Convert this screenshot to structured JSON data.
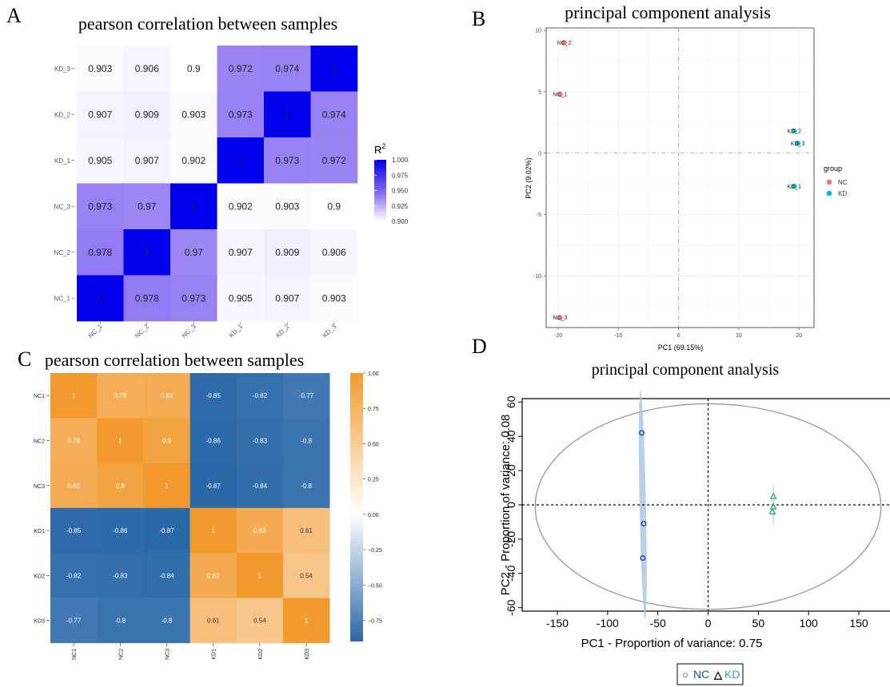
{
  "panels": {
    "A": {
      "letter": "A",
      "chart_data": {
        "type": "heatmap",
        "title": "pearson correlation between samples",
        "x_labels": [
          "NC_1",
          "NC_2",
          "NC_3",
          "KD_1",
          "KD_2",
          "KD_3"
        ],
        "y_labels_top_to_bottom": [
          "KD_3",
          "KD_2",
          "KD_1",
          "NC_3",
          "NC_2",
          "NC_1"
        ],
        "values": [
          [
            "0.903",
            "0.906",
            "0.9",
            "0.972",
            "0.974",
            "1"
          ],
          [
            "0.907",
            "0.909",
            "0.903",
            "0.973",
            "1",
            "0.974"
          ],
          [
            "0.905",
            "0.907",
            "0.902",
            "1",
            "0.973",
            "0.972"
          ],
          [
            "0.973",
            "0.97",
            "1",
            "0.902",
            "0.903",
            "0.9"
          ],
          [
            "0.978",
            "1",
            "0.97",
            "0.907",
            "0.909",
            "0.906"
          ],
          [
            "1",
            "0.978",
            "0.973",
            "0.905",
            "0.907",
            "0.903"
          ]
        ],
        "legend_title": "R",
        "legend_superscript": "2",
        "legend_ticks": [
          "1.000",
          "0.975",
          "0.950",
          "0.925",
          "0.900"
        ],
        "range": [
          0.9,
          1.0
        ],
        "colors": {
          "low": "#ffffff",
          "high": "#0000ee",
          "panel_bg": "#ebebeb"
        }
      }
    },
    "B": {
      "letter": "B",
      "chart_data": {
        "type": "scatter",
        "title": "principal component analysis",
        "xlabel": "PC1 (69.15%)",
        "ylabel": "PC2 (9.02%)",
        "xlim": [
          -22,
          22.5
        ],
        "ylim": [
          -14.2,
          10.2
        ],
        "x_ticks": [
          "-20",
          "-10",
          "0",
          "10",
          "20"
        ],
        "y_ticks": [
          "10",
          "5",
          "0",
          "-5",
          "-10"
        ],
        "legend_title": "group",
        "series": [
          {
            "name": "NC",
            "color": "#f8766d",
            "points": [
              {
                "label": "NC_2",
                "x": -19,
                "y": 9
              },
              {
                "label": "NC_1",
                "x": -19.7,
                "y": 4.8
              },
              {
                "label": "NC_3",
                "x": -19.7,
                "y": -13.4
              }
            ]
          },
          {
            "name": "KD",
            "color": "#00bfc4",
            "points": [
              {
                "label": "KD_2",
                "x": 19.2,
                "y": 1.8
              },
              {
                "label": "KD_3",
                "x": 19.8,
                "y": 0.8
              },
              {
                "label": "KD_1",
                "x": 19.2,
                "y": -2.7
              }
            ]
          }
        ]
      }
    },
    "C": {
      "letter": "C",
      "chart_data": {
        "type": "heatmap",
        "title": "pearson correlation between samples",
        "x_labels": [
          "NC1",
          "NC2",
          "NC3",
          "KD1",
          "KD2",
          "KD3"
        ],
        "y_labels": [
          "NC1",
          "NC2",
          "NC3",
          "KD1",
          "KD2",
          "KD3"
        ],
        "values": [
          [
            "1",
            "0.79",
            "0.82",
            "-0.85",
            "-0.82",
            "-0.77"
          ],
          [
            "0.79",
            "1",
            "0.9",
            "-0.86",
            "-0.83",
            "-0.8"
          ],
          [
            "0.82",
            "0.9",
            "1",
            "-0.87",
            "-0.84",
            "-0.8"
          ],
          [
            "-0.85",
            "-0.86",
            "-0.87",
            "1",
            "0.83",
            "0.61"
          ],
          [
            "-0.82",
            "-0.83",
            "-0.84",
            "0.83",
            "1",
            "0.54"
          ],
          [
            "-0.77",
            "-0.8",
            "-0.8",
            "0.61",
            "0.54",
            "1"
          ]
        ],
        "colorbar_ticks": [
          "1.00",
          "0.75",
          "0.50",
          "0.25",
          "0.00",
          "−0.25",
          "−0.50",
          "−0.75"
        ],
        "colorbar_range": [
          -0.9,
          1.0
        ],
        "colors": {
          "negative": "#2166ac",
          "zero": "#ffffff",
          "positive": "#f39a30"
        }
      }
    },
    "D": {
      "letter": "D",
      "chart_data": {
        "type": "scatter",
        "title": "principal component analysis",
        "xlabel": "PC1  -  Proportion of variance: 0.75",
        "ylabel": "PC2  -  Proportion of variance: 0.08",
        "xlim": [
          -185,
          185
        ],
        "ylim": [
          -62,
          62
        ],
        "x_ticks": [
          "-150",
          "-100",
          "-50",
          "0",
          "50",
          "100",
          "150"
        ],
        "y_ticks": [
          "60",
          "40",
          "20",
          "0",
          "-20",
          "-40",
          "-60"
        ],
        "series": [
          {
            "name": "NC",
            "marker": "circle",
            "color": "#1f4e9c",
            "points": [
              {
                "x": -66,
                "y": 42
              },
              {
                "x": -64,
                "y": -11
              },
              {
                "x": -65,
                "y": -31
              }
            ]
          },
          {
            "name": "KD",
            "marker": "triangle",
            "color": "#3aa79a",
            "points": [
              {
                "x": 65,
                "y": 5
              },
              {
                "x": 65,
                "y": -1
              },
              {
                "x": 64,
                "y": -4
              }
            ]
          }
        ],
        "legend": [
          {
            "symbol": "○",
            "label": "NC"
          },
          {
            "symbol": "△",
            "label": "KD"
          }
        ]
      }
    }
  }
}
